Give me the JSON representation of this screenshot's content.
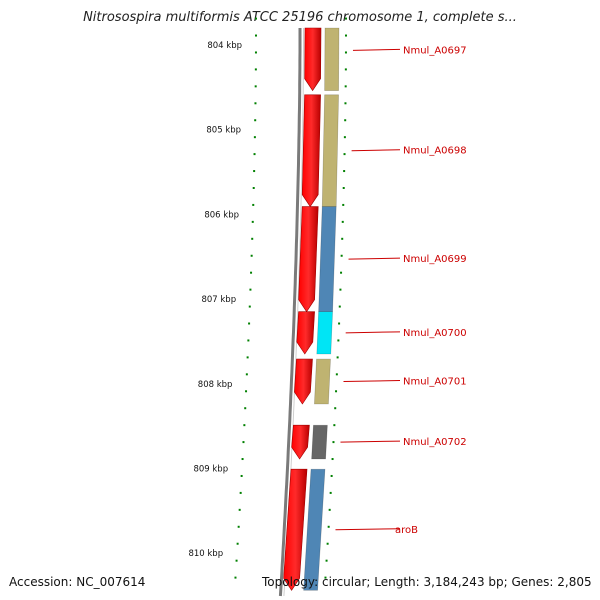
{
  "title": "Nitrosospira multiformis ATCC 25196 chromosome 1, complete s...",
  "ruler": {
    "start_kbp": 803.7,
    "end_kbp": 810.4,
    "labels": [
      "804 kbp",
      "805 kbp",
      "806 kbp",
      "807 kbp",
      "808 kbp",
      "809 kbp",
      "810 kbp"
    ],
    "major_kbp": [
      804,
      805,
      806,
      807,
      808,
      809,
      810
    ]
  },
  "genes": [
    {
      "name": "Nmul_A0697",
      "start_kbp": 803.6,
      "end_kbp": 804.55,
      "color": "#bfb371"
    },
    {
      "name": "Nmul_A0698",
      "start_kbp": 804.6,
      "end_kbp": 805.92,
      "color": "#bfb371"
    },
    {
      "name": "Nmul_A0699",
      "start_kbp": 805.92,
      "end_kbp": 807.16,
      "color": "#4f86b5"
    },
    {
      "name": "Nmul_A0700",
      "start_kbp": 807.16,
      "end_kbp": 807.66,
      "color": "#00e5f5"
    },
    {
      "name": "Nmul_A0701",
      "start_kbp": 807.72,
      "end_kbp": 808.25,
      "color": "#bfb371"
    },
    {
      "name": "Nmul_A0702",
      "start_kbp": 808.5,
      "end_kbp": 808.9,
      "color": "#666666"
    },
    {
      "name": "aroB",
      "start_kbp": 809.02,
      "end_kbp": 810.45,
      "color": "#4f86b5"
    }
  ],
  "colors": {
    "cds": "#ff0000",
    "label": "#cc0000",
    "tick": "#008000",
    "backbone": "#7a7a7a"
  },
  "footer": {
    "accession": "Accession: NC_007614",
    "summary": "Topology: circular; Length: 3,184,243 bp; Genes: 2,805"
  }
}
